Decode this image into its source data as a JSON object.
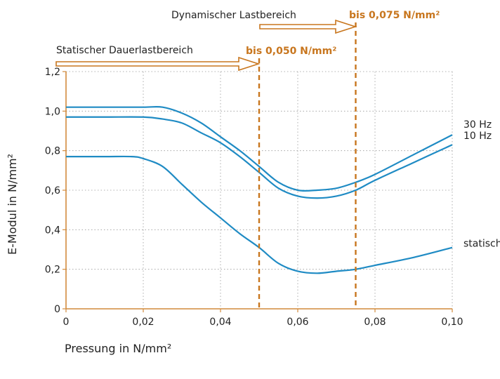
{
  "chart_data": {
    "type": "line",
    "xlabel": "Pressung in N/mm²",
    "ylabel": "E-Modul in N/mm²",
    "xlim": [
      0,
      0.1
    ],
    "ylim": [
      0,
      1.2
    ],
    "x_ticks": [
      "0",
      "0,02",
      "0,04",
      "0,06",
      "0,08",
      "0,10"
    ],
    "y_ticks": [
      "0",
      "0,2",
      "0,4",
      "0,6",
      "0,8",
      "1,0",
      "1,2"
    ],
    "x_tick_values": [
      0,
      0.02,
      0.04,
      0.06,
      0.08,
      0.1
    ],
    "y_tick_values": [
      0,
      0.2,
      0.4,
      0.6,
      0.8,
      1.0,
      1.2
    ],
    "grid": true,
    "colors": {
      "series": "#1f8bc4",
      "limits": "#c8761e",
      "axis": "#d28a3c",
      "grid": "#999999"
    },
    "series": [
      {
        "name": "30 Hz",
        "x": [
          0,
          0.01,
          0.02,
          0.025,
          0.03,
          0.035,
          0.04,
          0.045,
          0.05,
          0.055,
          0.06,
          0.065,
          0.07,
          0.075,
          0.08,
          0.09,
          0.1
        ],
        "y": [
          1.02,
          1.02,
          1.02,
          1.02,
          0.99,
          0.94,
          0.87,
          0.8,
          0.72,
          0.64,
          0.6,
          0.6,
          0.61,
          0.64,
          0.68,
          0.78,
          0.88
        ]
      },
      {
        "name": "10 Hz",
        "x": [
          0,
          0.01,
          0.02,
          0.025,
          0.03,
          0.035,
          0.04,
          0.045,
          0.05,
          0.055,
          0.06,
          0.065,
          0.07,
          0.075,
          0.08,
          0.09,
          0.1
        ],
        "y": [
          0.97,
          0.97,
          0.97,
          0.96,
          0.94,
          0.89,
          0.84,
          0.77,
          0.69,
          0.61,
          0.57,
          0.56,
          0.57,
          0.6,
          0.65,
          0.74,
          0.83
        ]
      },
      {
        "name": "statisch",
        "x": [
          0,
          0.01,
          0.017,
          0.02,
          0.025,
          0.03,
          0.035,
          0.04,
          0.045,
          0.05,
          0.055,
          0.06,
          0.065,
          0.07,
          0.075,
          0.08,
          0.09,
          0.1
        ],
        "y": [
          0.77,
          0.77,
          0.77,
          0.76,
          0.72,
          0.63,
          0.54,
          0.46,
          0.38,
          0.31,
          0.23,
          0.19,
          0.18,
          0.19,
          0.2,
          0.22,
          0.26,
          0.31
        ]
      }
    ],
    "annotations": [
      {
        "text": "Statischer Dauerlastbereich",
        "limit_label": "bis 0,050 N/mm²",
        "x_limit": 0.05
      },
      {
        "text": "Dynamischer Lastbereich",
        "limit_label": "bis 0,075 N/mm²",
        "x_limit": 0.075
      }
    ]
  }
}
